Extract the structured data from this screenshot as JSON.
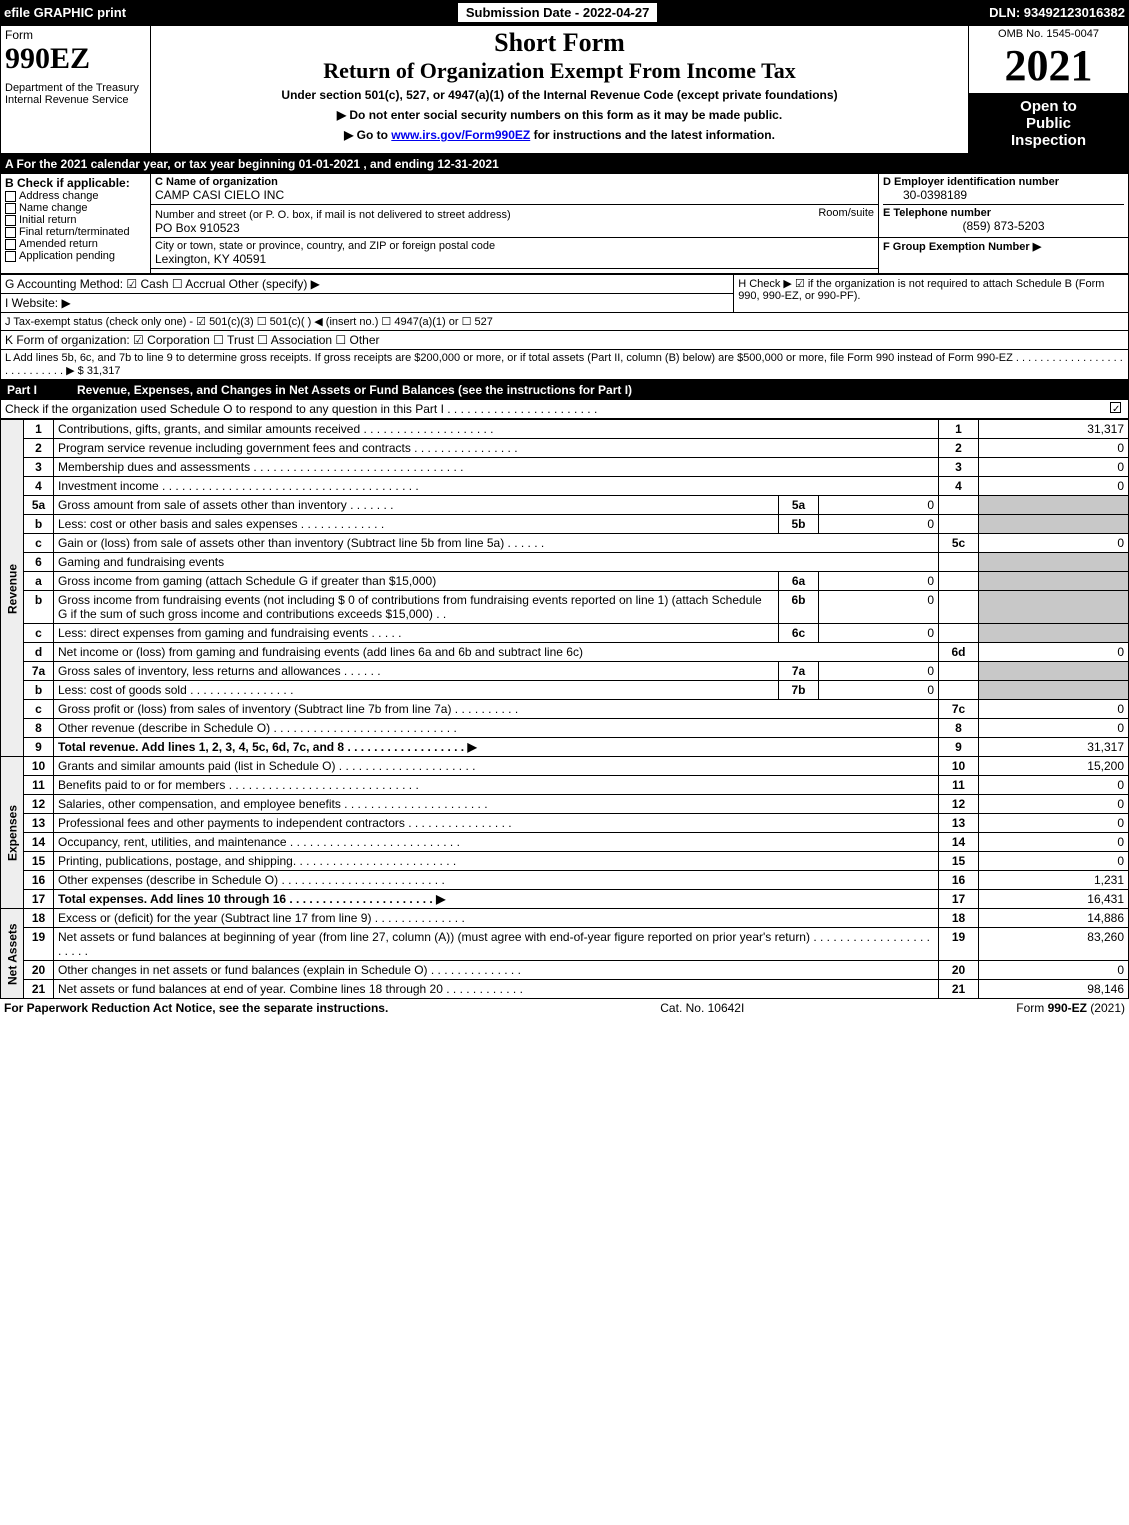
{
  "header": {
    "efile": "efile GRAPHIC print",
    "sub_date_label": "Submission Date - 2022-04-27",
    "dln": "DLN: 93492123016382"
  },
  "title": {
    "form_word": "Form",
    "form_num": "990EZ",
    "dept": "Department of the Treasury",
    "irs": "Internal Revenue Service",
    "short_form": "Short Form",
    "main": "Return of Organization Exempt From Income Tax",
    "under": "Under section 501(c), 527, or 4947(a)(1) of the Internal Revenue Code (except private foundations)",
    "note1": "▶ Do not enter social security numbers on this form as it may be made public.",
    "note2": "▶ Go to www.irs.gov/Form990EZ for instructions and the latest information.",
    "omb": "OMB No. 1545-0047",
    "year": "2021",
    "open1": "Open to",
    "open2": "Public",
    "open3": "Inspection"
  },
  "sectionA": {
    "A": "A  For the 2021 calendar year, or tax year beginning 01-01-2021 , and ending 12-31-2021",
    "B_label": "B  Check if applicable:",
    "B_opts": [
      "Address change",
      "Name change",
      "Initial return",
      "Final return/terminated",
      "Amended return",
      "Application pending"
    ],
    "C_name_label": "C Name of organization",
    "C_name": "CAMP CASI CIELO INC",
    "C_street_label": "Number and street (or P. O. box, if mail is not delivered to street address)",
    "C_room": "Room/suite",
    "C_street": "PO Box 910523",
    "C_city_label": "City or town, state or province, country, and ZIP or foreign postal code",
    "C_city": "Lexington, KY  40591",
    "D_label": "D Employer identification number",
    "D_val": "30-0398189",
    "E_label": "E Telephone number",
    "E_val": "(859) 873-5203",
    "F_label": "F Group Exemption Number  ▶"
  },
  "sectionG": {
    "G": "G Accounting Method:  ☑ Cash  ☐ Accrual  Other (specify) ▶",
    "H": "H  Check ▶ ☑ if the organization is not required to attach Schedule B (Form 990, 990-EZ, or 990-PF).",
    "I": "I Website: ▶",
    "J": "J Tax-exempt status (check only one) - ☑ 501(c)(3) ☐ 501(c)(  ) ◀ (insert no.) ☐ 4947(a)(1) or ☐ 527",
    "K": "K Form of organization:  ☑ Corporation  ☐ Trust  ☐ Association  ☐ Other",
    "L": "L Add lines 5b, 6c, and 7b to line 9 to determine gross receipts. If gross receipts are $200,000 or more, or if total assets (Part II, column (B) below) are $500,000 or more, file Form 990 instead of Form 990-EZ  . . . . . . . . . . . . . . . . . . . . . . . . . . . . ▶ $ 31,317"
  },
  "part1": {
    "header": "Revenue, Expenses, and Changes in Net Assets or Fund Balances (see the instructions for Part I)",
    "check": "Check if the organization used Schedule O to respond to any question in this Part I . . . . . . . . . . . . . . . . . . . . . . .",
    "revenue_label": "Revenue",
    "expenses_label": "Expenses",
    "netassets_label": "Net Assets",
    "lines": [
      {
        "n": "1",
        "t": "Contributions, gifts, grants, and similar amounts received  . . . . . . . . . . . . . . . . . . . .",
        "box": "1",
        "v": "31,317"
      },
      {
        "n": "2",
        "t": "Program service revenue including government fees and contracts  . . . . . . . . . . . . . . . .",
        "box": "2",
        "v": "0"
      },
      {
        "n": "3",
        "t": "Membership dues and assessments  . . . . . . . . . . . . . . . . . . . . . . . . . . . . . . . .",
        "box": "3",
        "v": "0"
      },
      {
        "n": "4",
        "t": "Investment income . . . . . . . . . . . . . . . . . . . . . . . . . . . . . . . . . . . . . . .",
        "box": "4",
        "v": "0"
      },
      {
        "n": "5a",
        "t": "Gross amount from sale of assets other than inventory  . . . . . . .",
        "mid": "5a",
        "midv": "0"
      },
      {
        "n": "b",
        "t": "Less: cost or other basis and sales expenses  . . . . . . . . . . . . .",
        "mid": "5b",
        "midv": "0"
      },
      {
        "n": "c",
        "t": "Gain or (loss) from sale of assets other than inventory (Subtract line 5b from line 5a)  . . . . . .",
        "box": "5c",
        "v": "0"
      },
      {
        "n": "6",
        "t": "Gaming and fundraising events"
      },
      {
        "n": "a",
        "t": "Gross income from gaming (attach Schedule G if greater than $15,000)",
        "mid": "6a",
        "midv": "0"
      },
      {
        "n": "b",
        "t": "Gross income from fundraising events (not including $  0              of contributions from fundraising events reported on line 1) (attach Schedule G if the sum of such gross income and contributions exceeds $15,000)   . .",
        "mid": "6b",
        "midv": "0"
      },
      {
        "n": "c",
        "t": "Less: direct expenses from gaming and fundraising events  . . . . .",
        "mid": "6c",
        "midv": "0"
      },
      {
        "n": "d",
        "t": "Net income or (loss) from gaming and fundraising events (add lines 6a and 6b and subtract line 6c)",
        "box": "6d",
        "v": "0"
      },
      {
        "n": "7a",
        "t": "Gross sales of inventory, less returns and allowances  . . . . . .",
        "mid": "7a",
        "midv": "0"
      },
      {
        "n": "b",
        "t": "Less: cost of goods sold       . . . . . . . . . . . . . . . .",
        "mid": "7b",
        "midv": "0"
      },
      {
        "n": "c",
        "t": "Gross profit or (loss) from sales of inventory (Subtract line 7b from line 7a)  . . . . . . . . . .",
        "box": "7c",
        "v": "0"
      },
      {
        "n": "8",
        "t": "Other revenue (describe in Schedule O)  . . . . . . . . . . . . . . . . . . . . . . . . . . . .",
        "box": "8",
        "v": "0"
      },
      {
        "n": "9",
        "t": "Total revenue. Add lines 1, 2, 3, 4, 5c, 6d, 7c, and 8  . . . . . . . . . . . . . . . . . .  ▶",
        "box": "9",
        "v": "31,317",
        "bold": true
      }
    ],
    "exp_lines": [
      {
        "n": "10",
        "t": "Grants and similar amounts paid (list in Schedule O)  . . . . . . . . . . . . . . . . . . . . .",
        "box": "10",
        "v": "15,200"
      },
      {
        "n": "11",
        "t": "Benefits paid to or for members      . . . . . . . . . . . . . . . . . . . . . . . . . . . . .",
        "box": "11",
        "v": "0"
      },
      {
        "n": "12",
        "t": "Salaries, other compensation, and employee benefits . . . . . . . . . . . . . . . . . . . . . .",
        "box": "12",
        "v": "0"
      },
      {
        "n": "13",
        "t": "Professional fees and other payments to independent contractors . . . . . . . . . . . . . . . .",
        "box": "13",
        "v": "0"
      },
      {
        "n": "14",
        "t": "Occupancy, rent, utilities, and maintenance . . . . . . . . . . . . . . . . . . . . . . . . . .",
        "box": "14",
        "v": "0"
      },
      {
        "n": "15",
        "t": "Printing, publications, postage, and shipping.  . . . . . . . . . . . . . . . . . . . . . . . .",
        "box": "15",
        "v": "0"
      },
      {
        "n": "16",
        "t": "Other expenses (describe in Schedule O)     . . . . . . . . . . . . . . . . . . . . . . . . .",
        "box": "16",
        "v": "1,231"
      },
      {
        "n": "17",
        "t": "Total expenses. Add lines 10 through 16     . . . . . . . . . . . . . . . . . . . . . .  ▶",
        "box": "17",
        "v": "16,431",
        "bold": true
      }
    ],
    "na_lines": [
      {
        "n": "18",
        "t": "Excess or (deficit) for the year (Subtract line 17 from line 9)       . . . . . . . . . . . . . .",
        "box": "18",
        "v": "14,886"
      },
      {
        "n": "19",
        "t": "Net assets or fund balances at beginning of year (from line 27, column (A)) (must agree with end-of-year figure reported on prior year's return) . . . . . . . . . . . . . . . . . . . . . . .",
        "box": "19",
        "v": "83,260"
      },
      {
        "n": "20",
        "t": "Other changes in net assets or fund balances (explain in Schedule O) . . . . . . . . . . . . . .",
        "box": "20",
        "v": "0"
      },
      {
        "n": "21",
        "t": "Net assets or fund balances at end of year. Combine lines 18 through 20 . . . . . . . . . . . .",
        "box": "21",
        "v": "98,146"
      }
    ]
  },
  "footer": {
    "left": "For Paperwork Reduction Act Notice, see the separate instructions.",
    "mid": "Cat. No. 10642I",
    "right": "Form 990-EZ (2021)"
  },
  "styles": {
    "bg": "#ffffff",
    "fg": "#000000",
    "shade": "#c8c8c8",
    "font_body": 12,
    "font_title": 26,
    "font_title2": 22,
    "font_year": 44
  }
}
